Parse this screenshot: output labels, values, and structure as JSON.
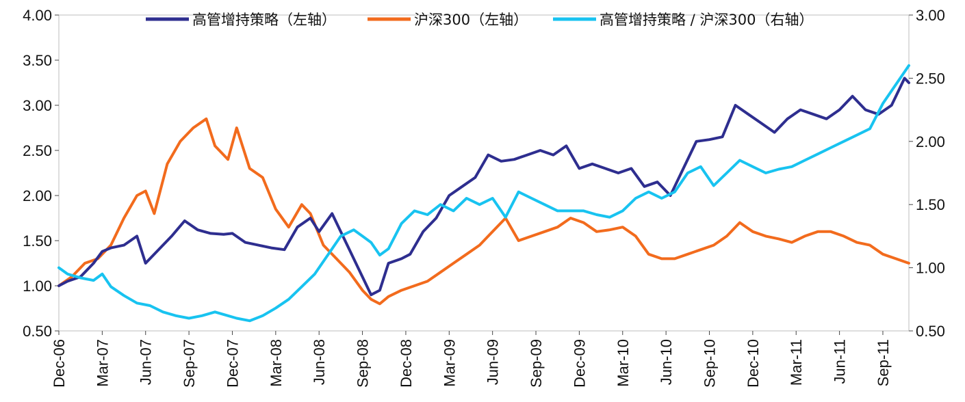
{
  "chart_data": {
    "type": "line",
    "title": "",
    "xlabel": "",
    "ylabel_left": "",
    "ylabel_right": "",
    "x_ticks": [
      "Dec-06",
      "Mar-07",
      "Jun-07",
      "Sep-07",
      "Dec-07",
      "Mar-08",
      "Jun-08",
      "Sep-08",
      "Dec-08",
      "Mar-09",
      "Jun-09",
      "Sep-09",
      "Dec-09",
      "Mar-10",
      "Jun-10",
      "Sep-10",
      "Dec-10",
      "Mar-11",
      "Jun-11",
      "Sep-11"
    ],
    "x_range": [
      0,
      19.6
    ],
    "y_left": {
      "min": 0.5,
      "max": 4.0,
      "ticks": [
        "0.50",
        "1.00",
        "1.50",
        "2.00",
        "2.50",
        "3.00",
        "3.50",
        "4.00"
      ]
    },
    "y_right": {
      "min": 0.5,
      "max": 3.0,
      "ticks": [
        "0.50",
        "1.00",
        "1.50",
        "2.00",
        "2.50",
        "3.00"
      ]
    },
    "legend": {
      "position": "top-center"
    },
    "series": [
      {
        "name": "高管增持策略（左轴）",
        "axis": "left",
        "color": "#2e2e8f",
        "x": [
          0,
          0.2,
          0.5,
          0.8,
          1,
          1.2,
          1.5,
          1.8,
          2,
          2.3,
          2.6,
          2.9,
          3.2,
          3.5,
          3.8,
          4,
          4.3,
          4.6,
          4.9,
          5.2,
          5.5,
          5.8,
          6,
          6.3,
          6.6,
          6.9,
          7.2,
          7.4,
          7.6,
          7.9,
          8.1,
          8.4,
          8.7,
          9,
          9.3,
          9.6,
          9.9,
          10.2,
          10.5,
          10.8,
          11.1,
          11.4,
          11.7,
          12,
          12.3,
          12.6,
          12.9,
          13.2,
          13.5,
          13.8,
          14.1,
          14.4,
          14.7,
          15,
          15.3,
          15.6,
          15.9,
          16.2,
          16.5,
          16.8,
          17.1,
          17.4,
          17.7,
          18,
          18.3,
          18.6,
          18.9,
          19.2,
          19.5,
          19.6
        ],
        "values": [
          1.0,
          1.05,
          1.1,
          1.25,
          1.38,
          1.42,
          1.45,
          1.55,
          1.25,
          1.4,
          1.55,
          1.72,
          1.62,
          1.58,
          1.57,
          1.58,
          1.48,
          1.45,
          1.42,
          1.4,
          1.65,
          1.75,
          1.6,
          1.8,
          1.5,
          1.2,
          0.9,
          0.95,
          1.25,
          1.3,
          1.35,
          1.6,
          1.75,
          2.0,
          2.1,
          2.2,
          2.45,
          2.38,
          2.4,
          2.45,
          2.5,
          2.45,
          2.55,
          2.3,
          2.35,
          2.3,
          2.25,
          2.3,
          2.1,
          2.15,
          2.0,
          2.3,
          2.6,
          2.62,
          2.65,
          3.0,
          2.9,
          2.8,
          2.7,
          2.85,
          2.95,
          2.9,
          2.85,
          2.95,
          3.1,
          2.95,
          2.9,
          3.0,
          3.3,
          3.25
        ]
      },
      {
        "name": "沪深300（左轴）",
        "axis": "left",
        "color": "#f26b1d",
        "x": [
          0,
          0.3,
          0.6,
          0.9,
          1.2,
          1.5,
          1.8,
          2,
          2.2,
          2.5,
          2.8,
          3.1,
          3.4,
          3.6,
          3.9,
          4.1,
          4.4,
          4.7,
          5,
          5.3,
          5.6,
          5.8,
          6.1,
          6.4,
          6.7,
          7,
          7.2,
          7.4,
          7.6,
          7.9,
          8.2,
          8.5,
          8.8,
          9.1,
          9.4,
          9.7,
          10,
          10.3,
          10.6,
          10.9,
          11.2,
          11.5,
          11.8,
          12.1,
          12.4,
          12.7,
          13,
          13.3,
          13.6,
          13.9,
          14.2,
          14.5,
          14.8,
          15.1,
          15.4,
          15.7,
          16,
          16.3,
          16.6,
          16.9,
          17.2,
          17.5,
          17.8,
          18.1,
          18.4,
          18.7,
          19,
          19.3,
          19.6
        ],
        "values": [
          1.0,
          1.1,
          1.25,
          1.3,
          1.45,
          1.75,
          2.0,
          2.05,
          1.8,
          2.35,
          2.6,
          2.75,
          2.85,
          2.55,
          2.4,
          2.75,
          2.3,
          2.2,
          1.85,
          1.65,
          1.9,
          1.8,
          1.45,
          1.3,
          1.15,
          0.95,
          0.85,
          0.8,
          0.88,
          0.95,
          1.0,
          1.05,
          1.15,
          1.25,
          1.35,
          1.45,
          1.6,
          1.75,
          1.5,
          1.55,
          1.6,
          1.65,
          1.75,
          1.7,
          1.6,
          1.62,
          1.65,
          1.55,
          1.35,
          1.3,
          1.3,
          1.35,
          1.4,
          1.45,
          1.55,
          1.7,
          1.6,
          1.55,
          1.52,
          1.48,
          1.55,
          1.6,
          1.6,
          1.55,
          1.48,
          1.45,
          1.35,
          1.3,
          1.25
        ]
      },
      {
        "name": "高管增持策略 / 沪深300（右轴）",
        "axis": "right",
        "color": "#18c3f0",
        "x": [
          0,
          0.2,
          0.5,
          0.8,
          1,
          1.2,
          1.5,
          1.8,
          2.1,
          2.4,
          2.7,
          3,
          3.3,
          3.6,
          3.9,
          4.1,
          4.4,
          4.7,
          5,
          5.3,
          5.6,
          5.9,
          6.2,
          6.5,
          6.8,
          7,
          7.2,
          7.4,
          7.6,
          7.9,
          8.2,
          8.5,
          8.8,
          9.1,
          9.4,
          9.7,
          10,
          10.3,
          10.6,
          10.9,
          11.2,
          11.5,
          11.8,
          12.1,
          12.4,
          12.7,
          13,
          13.3,
          13.6,
          13.9,
          14.2,
          14.5,
          14.8,
          15.1,
          15.4,
          15.7,
          16,
          16.3,
          16.6,
          16.9,
          17.2,
          17.5,
          17.8,
          18.1,
          18.4,
          18.7,
          19,
          19.3,
          19.6
        ],
        "values": [
          1.0,
          0.95,
          0.92,
          0.9,
          0.95,
          0.85,
          0.78,
          0.72,
          0.7,
          0.65,
          0.62,
          0.6,
          0.62,
          0.65,
          0.62,
          0.6,
          0.58,
          0.62,
          0.68,
          0.75,
          0.85,
          0.95,
          1.1,
          1.25,
          1.3,
          1.25,
          1.2,
          1.1,
          1.15,
          1.35,
          1.45,
          1.42,
          1.5,
          1.45,
          1.55,
          1.5,
          1.55,
          1.4,
          1.6,
          1.55,
          1.5,
          1.45,
          1.45,
          1.45,
          1.42,
          1.4,
          1.45,
          1.55,
          1.6,
          1.55,
          1.6,
          1.75,
          1.8,
          1.65,
          1.75,
          1.85,
          1.8,
          1.75,
          1.78,
          1.8,
          1.85,
          1.9,
          1.95,
          2.0,
          2.05,
          2.1,
          2.3,
          2.45,
          2.6
        ]
      }
    ]
  }
}
